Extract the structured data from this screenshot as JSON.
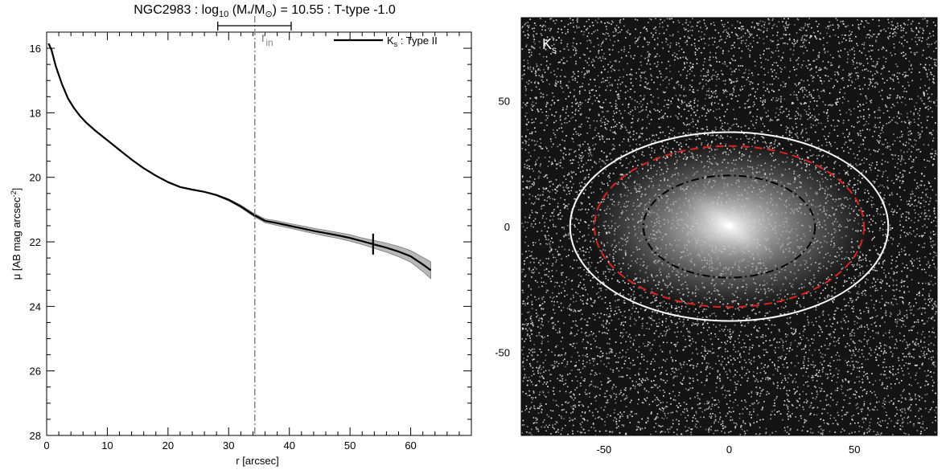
{
  "title": {
    "pre": "NGC2983 : log",
    "sub1": "10",
    "mid": " (M",
    "sub2": "*",
    "mid2": "/M",
    "sub3": "⊙",
    "post": ") = 10.55 : T-type -1.0"
  },
  "chart_data": [
    {
      "type": "line",
      "xlabel": "r [arcsec]",
      "ylabel_main": "μ [AB mag arcsec",
      "ylabel_sup": "-2",
      "ylabel_close": "]",
      "xlim": [
        0,
        70
      ],
      "ylim": [
        28,
        15.5
      ],
      "y_inverted": true,
      "x_ticks": [
        "0",
        "10",
        "20",
        "30",
        "40",
        "50",
        "60"
      ],
      "y_ticks": [
        "16",
        "18",
        "20",
        "22",
        "24",
        "26",
        "28"
      ],
      "legend": {
        "main": "K",
        "sub": "s",
        "rest": " : Type II",
        "placement": "top-right"
      },
      "r_in": {
        "label": "r",
        "label_sub": "in",
        "value": 34.3,
        "range": [
          28.2,
          40.3
        ]
      },
      "break_marker": 53.8,
      "series": [
        {
          "name": "Ks : Type II",
          "color": "#000000",
          "x": [
            0.3,
            0.8,
            1.5,
            2.5,
            3.5,
            4.5,
            5.5,
            6.5,
            8,
            10,
            12,
            14,
            16,
            18,
            20,
            22,
            24,
            26,
            28,
            30,
            32,
            34,
            36,
            38,
            40,
            42,
            44,
            46,
            48,
            50,
            52,
            54,
            56,
            58,
            60,
            62,
            63.3
          ],
          "y": [
            15.85,
            16.05,
            16.55,
            17.1,
            17.55,
            17.85,
            18.1,
            18.3,
            18.55,
            18.85,
            19.15,
            19.45,
            19.72,
            19.95,
            20.15,
            20.3,
            20.38,
            20.45,
            20.55,
            20.7,
            20.9,
            21.15,
            21.35,
            21.42,
            21.5,
            21.58,
            21.66,
            21.73,
            21.8,
            21.88,
            21.98,
            22.08,
            22.18,
            22.3,
            22.45,
            22.7,
            22.88
          ],
          "err": [
            0,
            0,
            0,
            0,
            0,
            0,
            0,
            0,
            0,
            0,
            0,
            0,
            0,
            0,
            0,
            0,
            0,
            0.01,
            0.02,
            0.03,
            0.04,
            0.05,
            0.06,
            0.07,
            0.07,
            0.08,
            0.08,
            0.09,
            0.09,
            0.1,
            0.1,
            0.12,
            0.14,
            0.16,
            0.18,
            0.22,
            0.26
          ]
        }
      ]
    },
    {
      "type": "heatmap",
      "panel_label_main": "K",
      "panel_label_sub": "s",
      "xlim": [
        -83,
        83
      ],
      "ylim": [
        -83,
        83
      ],
      "x_ticks": [
        "-50",
        "0",
        "50"
      ],
      "y_ticks": [
        "-50",
        "0",
        "50"
      ],
      "ellipses": [
        {
          "name": "outer-white",
          "a": 63.5,
          "b": 37.5,
          "color": "#ffffff",
          "style": "solid"
        },
        {
          "name": "red-dashed",
          "a": 53.8,
          "b": 32,
          "color": "#dd2222",
          "style": "dashed"
        },
        {
          "name": "r-in",
          "a": 34.3,
          "b": 20.3,
          "color": "#000000",
          "style": "dashdot"
        }
      ]
    }
  ]
}
